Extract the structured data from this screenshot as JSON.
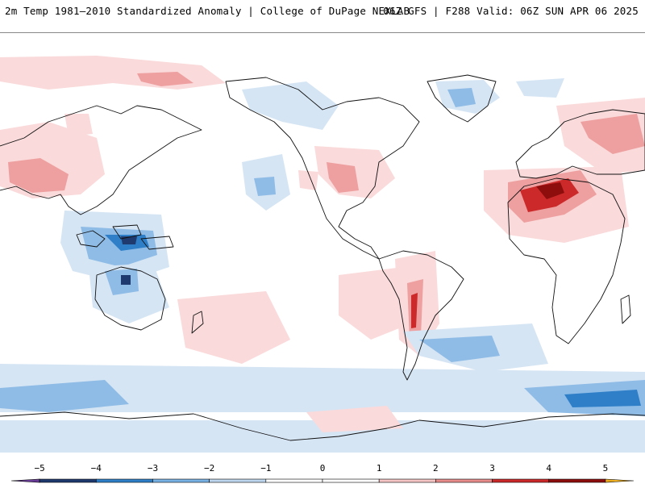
{
  "header": {
    "left_title": "2m Temp 1981–2010 Standardized Anomaly | College of DuPage NEXLAB",
    "right_title": "06Z GFS | F288 Valid: 06Z SUN APR 06 2025"
  },
  "colorbar": {
    "min": -5.5,
    "max": 5.5,
    "ticks": [
      {
        "value": -5,
        "label": "−5"
      },
      {
        "value": -4,
        "label": "−4"
      },
      {
        "value": -3,
        "label": "−3"
      },
      {
        "value": -2,
        "label": "−2"
      },
      {
        "value": -1,
        "label": "−1"
      },
      {
        "value": 0,
        "label": "0"
      },
      {
        "value": 1,
        "label": "1"
      },
      {
        "value": 2,
        "label": "2"
      },
      {
        "value": 3,
        "label": "3"
      },
      {
        "value": 4,
        "label": "4"
      },
      {
        "value": 5,
        "label": "5"
      }
    ],
    "bins": [
      {
        "from": -5.5,
        "to": -5,
        "color": "#6a3d9a"
      },
      {
        "from": -5,
        "to": -4,
        "color": "#1f3a6e"
      },
      {
        "from": -4,
        "to": -3,
        "color": "#2f7fc8"
      },
      {
        "from": -3,
        "to": -2,
        "color": "#79b2e4"
      },
      {
        "from": -2,
        "to": -1,
        "color": "#bfd8ef"
      },
      {
        "from": -1,
        "to": 0,
        "color": "#ffffff"
      },
      {
        "from": 0,
        "to": 1,
        "color": "#ffffff"
      },
      {
        "from": 1,
        "to": 2,
        "color": "#f6c6c6"
      },
      {
        "from": 2,
        "to": 3,
        "color": "#e98c8c"
      },
      {
        "from": 3,
        "to": 4,
        "color": "#cc2a2a"
      },
      {
        "from": 4,
        "to": 5,
        "color": "#8e0e0e"
      },
      {
        "from": 5,
        "to": 5.5,
        "color": "#f0b020"
      }
    ]
  },
  "colors": {
    "cold_light": "#d6e5f4",
    "cold_medium": "#8fbce6",
    "cold_strong": "#2f7fc8",
    "cold_extreme": "#1f3a6e",
    "warm_light": "#fadada",
    "warm_medium": "#ee9f9f",
    "warm_strong": "#cc2a2a",
    "warm_extreme": "#8e0e0e",
    "coastline": "#111111"
  }
}
